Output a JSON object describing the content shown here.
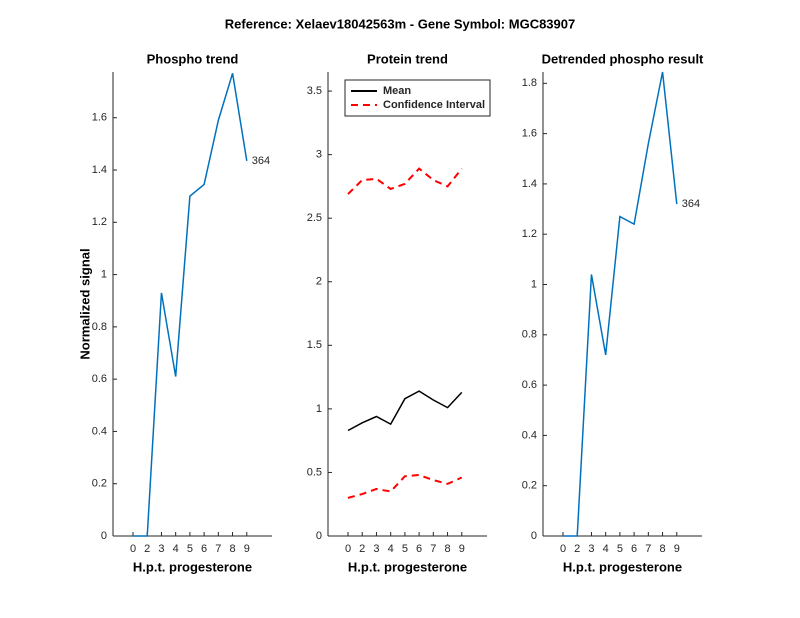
{
  "title": "Reference:  Xelaev18042563m - Gene Symbol:  MGC83907",
  "chart_data": [
    {
      "type": "line",
      "title": "Phospho trend",
      "xlabel": "H.p.t. progesterone",
      "ylabel": "Normalized signal",
      "categories": [
        "0",
        "2",
        "3",
        "4",
        "5",
        "6",
        "7",
        "8",
        "9"
      ],
      "ylim": [
        0,
        1.775
      ],
      "yticks": [
        0,
        0.2,
        0.4,
        0.6,
        0.8,
        1,
        1.2,
        1.4,
        1.6
      ],
      "series": [
        {
          "color": "#0072bd",
          "values": [
            0,
            0,
            0.93,
            0.61,
            1.3,
            1.345,
            1.59,
            1.77,
            1.435
          ]
        }
      ],
      "annotation": "364"
    },
    {
      "type": "line",
      "title": "Protein trend",
      "xlabel": "H.p.t. progesterone",
      "categories": [
        "0",
        "2",
        "3",
        "4",
        "5",
        "6",
        "7",
        "8",
        "9"
      ],
      "ylim": [
        0,
        3.65
      ],
      "yticks": [
        0,
        0.5,
        1,
        1.5,
        2,
        2.5,
        3,
        3.5
      ],
      "legend": "upper left",
      "series": [
        {
          "name": "Mean",
          "color": "#000000",
          "values": [
            0.83,
            0.89,
            0.94,
            0.88,
            1.08,
            1.14,
            1.07,
            1.01,
            1.13
          ]
        },
        {
          "name": "Confidence Interval",
          "color": "#ff0000",
          "dashed": true,
          "upper": [
            2.69,
            2.8,
            2.81,
            2.73,
            2.77,
            2.89,
            2.8,
            2.75,
            2.89
          ],
          "lower": [
            0.3,
            0.33,
            0.37,
            0.35,
            0.47,
            0.48,
            0.44,
            0.41,
            0.46
          ]
        }
      ]
    },
    {
      "type": "line",
      "title": "Detrended phospho result",
      "xlabel": "H.p.t. progesterone",
      "categories": [
        "0",
        "2",
        "3",
        "4",
        "5",
        "6",
        "7",
        "8",
        "9"
      ],
      "ylim": [
        0,
        1.845
      ],
      "yticks": [
        0,
        0.2,
        0.4,
        0.6,
        0.8,
        1,
        1.2,
        1.4,
        1.6,
        1.8
      ],
      "series": [
        {
          "color": "#0072bd",
          "values": [
            0,
            0,
            1.04,
            0.72,
            1.27,
            1.24,
            1.56,
            1.845,
            1.32
          ]
        }
      ],
      "annotation": "364"
    }
  ]
}
